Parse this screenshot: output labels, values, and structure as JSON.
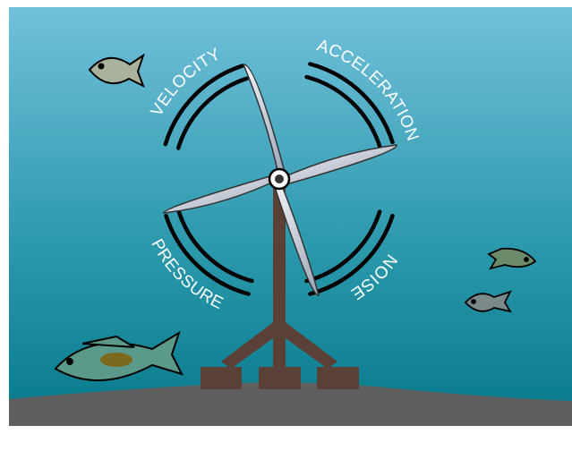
{
  "labels": [
    "VELOCITY",
    "ACCELERATION",
    "NOISE",
    "PRESSURE"
  ]
}
